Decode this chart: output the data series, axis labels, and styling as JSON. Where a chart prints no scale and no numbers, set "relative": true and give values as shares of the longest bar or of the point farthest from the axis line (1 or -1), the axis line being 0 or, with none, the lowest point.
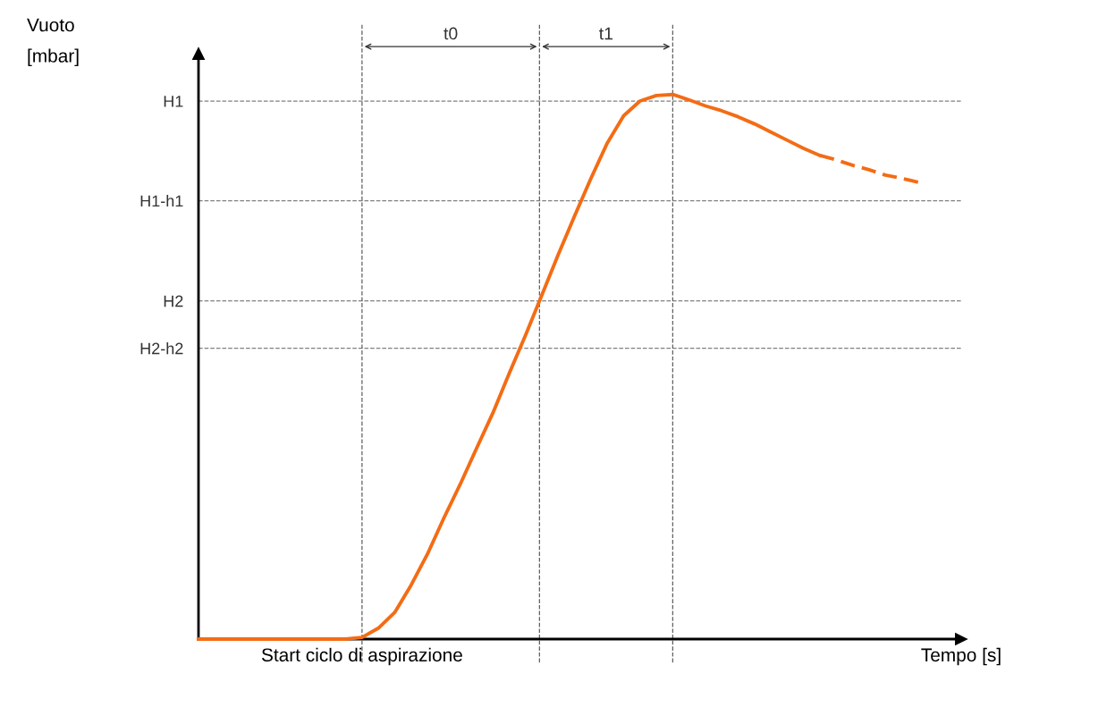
{
  "chart_data": {
    "type": "line",
    "relative": true,
    "xlabel": "Tempo [s]",
    "categories": [
      null,
      null,
      null,
      null,
      null,
      null,
      null,
      null,
      null,
      null,
      null,
      null,
      null,
      null,
      null,
      null,
      null,
      null,
      null,
      null,
      null,
      null,
      null,
      null,
      null,
      null,
      null,
      null,
      null,
      null,
      null,
      null,
      null,
      null,
      null,
      null,
      null,
      null,
      null,
      null,
      null,
      null,
      null,
      null,
      null
    ],
    "series": [
      {
        "color": "#f36c15",
        "line_style": "solid",
        "values": [
          0,
          0,
          0,
          0,
          0,
          0,
          0,
          0,
          0,
          0,
          0.003,
          0.02,
          0.049,
          0.099,
          0.156,
          0.222,
          0.284,
          0.35,
          0.415,
          0.488,
          0.558,
          0.632,
          0.706,
          0.777,
          0.846,
          0.911,
          0.961,
          0.988,
          0.998,
          1.0,
          0.99,
          0.979,
          0.97,
          0.959,
          0.946,
          0.931,
          0.916,
          0.901,
          0.888,
          null,
          null,
          null,
          null,
          null,
          null
        ]
      },
      {
        "color": "#f36c15",
        "line_style": "dashed",
        "values": [
          null,
          null,
          null,
          null,
          null,
          null,
          null,
          null,
          null,
          null,
          null,
          null,
          null,
          null,
          null,
          null,
          null,
          null,
          null,
          null,
          null,
          null,
          null,
          null,
          null,
          null,
          null,
          null,
          null,
          null,
          null,
          null,
          null,
          null,
          null,
          null,
          null,
          null,
          0.888,
          0.88,
          0.87,
          0.862,
          0.852,
          0.846,
          0.839
        ]
      }
    ],
    "ref_lines": [
      {
        "axis": "y",
        "value": 0.988,
        "label": "H1",
        "color": "#808080",
        "line_style": "dashed"
      },
      {
        "axis": "y",
        "value": 0.805,
        "label": "H1-h1",
        "color": "#808080",
        "line_style": "dashed"
      },
      {
        "axis": "y",
        "value": 0.621,
        "label": "H2",
        "color": "#808080",
        "line_style": "dashed"
      },
      {
        "axis": "y",
        "value": 0.534,
        "label": "H2-h2",
        "color": "#808080",
        "line_style": "dashed"
      }
    ],
    "annotations": [
      "t0",
      "t1",
      "Start ciclo di aspirazione",
      "Vuoto\n[mbar]"
    ],
    "grid": "x",
    "legend": false
  }
}
